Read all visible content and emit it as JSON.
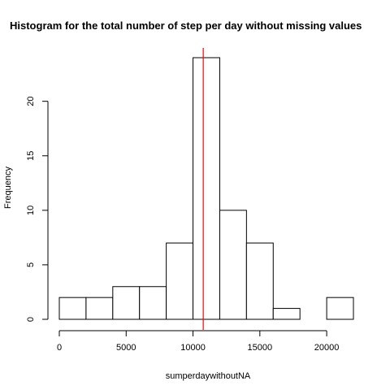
{
  "chart_data": {
    "type": "bar",
    "title": "Histogram for the total number of step per day without missing values",
    "xlabel": "sumperdaywithoutNA",
    "ylabel": "Frequency",
    "bins": [
      {
        "start": 0,
        "end": 2000,
        "count": 2
      },
      {
        "start": 2000,
        "end": 4000,
        "count": 2
      },
      {
        "start": 4000,
        "end": 6000,
        "count": 3
      },
      {
        "start": 6000,
        "end": 8000,
        "count": 3
      },
      {
        "start": 8000,
        "end": 10000,
        "count": 7
      },
      {
        "start": 10000,
        "end": 12000,
        "count": 24
      },
      {
        "start": 12000,
        "end": 14000,
        "count": 10
      },
      {
        "start": 14000,
        "end": 16000,
        "count": 7
      },
      {
        "start": 16000,
        "end": 18000,
        "count": 1
      },
      {
        "start": 18000,
        "end": 20000,
        "count": 0
      },
      {
        "start": 20000,
        "end": 22000,
        "count": 2
      }
    ],
    "xticks": [
      0,
      5000,
      10000,
      15000,
      20000
    ],
    "yticks": [
      0,
      5,
      10,
      15,
      20
    ],
    "xlim": [
      0,
      22000
    ],
    "ylim": [
      0,
      24
    ],
    "vline": {
      "x": 10766,
      "color": "#ff0000"
    },
    "grid": false,
    "legend": "none"
  }
}
